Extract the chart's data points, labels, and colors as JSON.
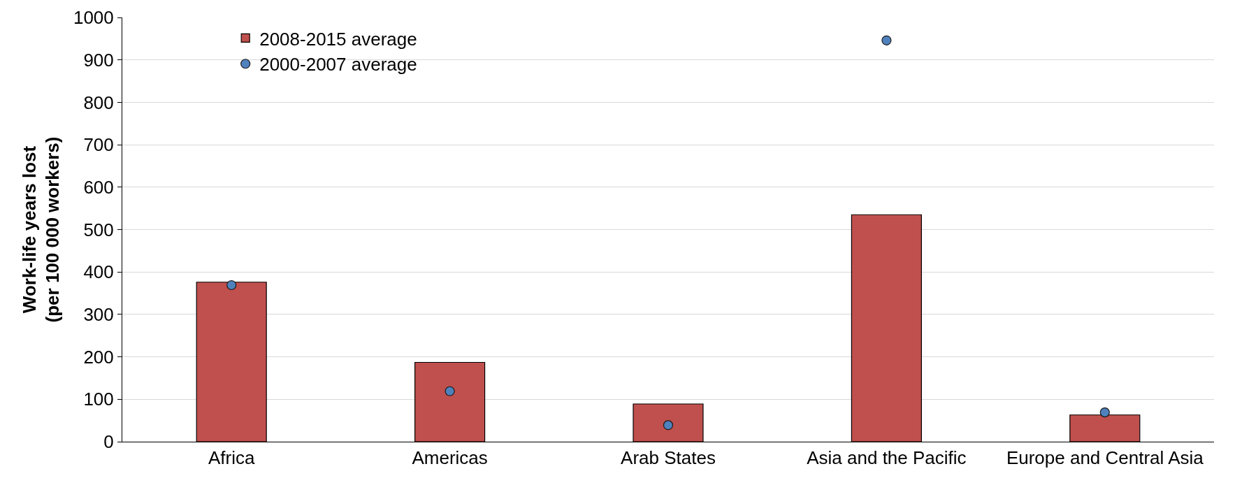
{
  "chart_data": {
    "type": "bar",
    "ylabel": "Work-life years lost\n(per 100 000 workers)",
    "categories": [
      "Africa",
      "Americas",
      "Arab States",
      "Asia and the Pacific",
      "Europe and Central Asia"
    ],
    "series": [
      {
        "name": "2008-2015 average",
        "color": "#c0504d",
        "values": [
          376,
          187,
          89,
          535,
          63
        ]
      },
      {
        "name": "2000-2007 average",
        "type": "scatter",
        "color": "#4f81bd",
        "marker": "circle",
        "values": [
          369,
          119,
          39,
          946,
          69
        ]
      }
    ],
    "ylim": [
      0,
      1000
    ],
    "yticks": [
      0,
      100,
      200,
      300,
      400,
      500,
      600,
      700,
      800,
      900,
      1000
    ],
    "grid": "y",
    "legend": "top left"
  }
}
